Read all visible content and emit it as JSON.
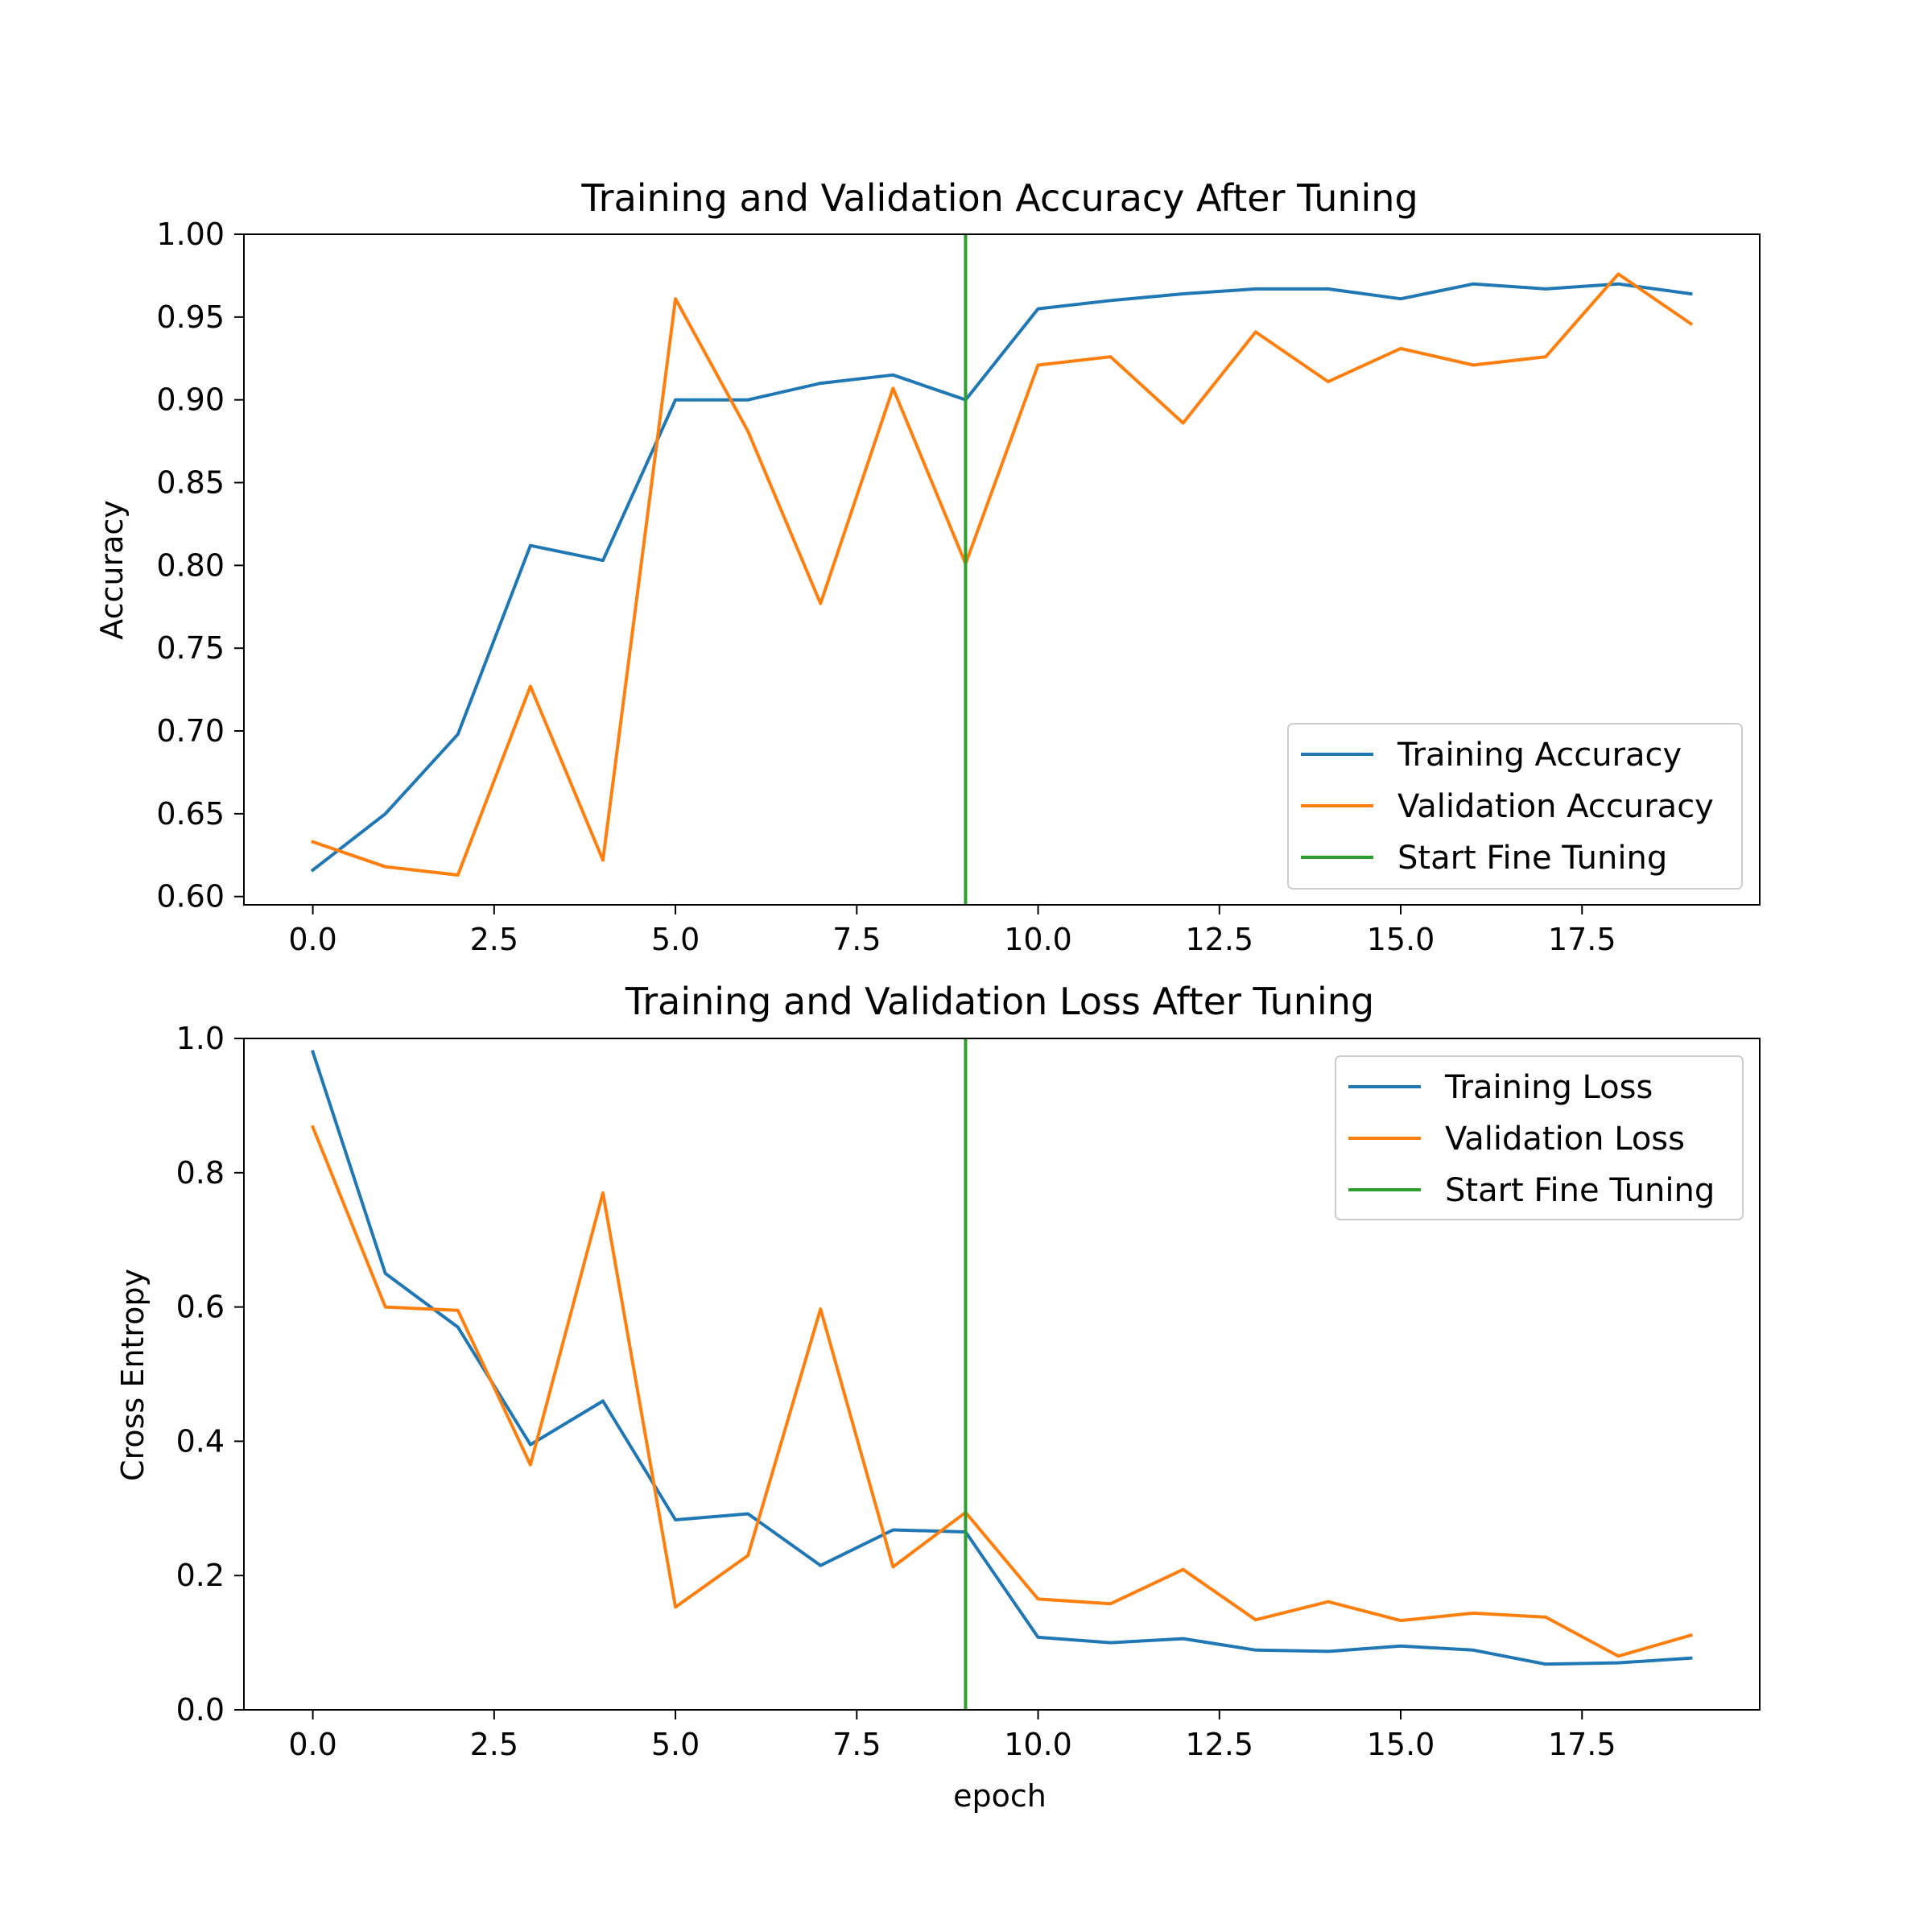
{
  "chart_data": [
    {
      "type": "line",
      "title": "Training and Validation Accuracy After Tuning",
      "xlabel": "",
      "ylabel": "Accuracy",
      "xlim": [
        -0.95,
        19.95
      ],
      "ylim": [
        0.595,
        1.0
      ],
      "xticks": [
        0.0,
        2.5,
        5.0,
        7.5,
        10.0,
        12.5,
        15.0,
        17.5
      ],
      "xtick_labels": [
        "0.0",
        "2.5",
        "5.0",
        "7.5",
        "10.0",
        "12.5",
        "15.0",
        "17.5"
      ],
      "yticks": [
        0.6,
        0.65,
        0.7,
        0.75,
        0.8,
        0.85,
        0.9,
        0.95,
        1.0
      ],
      "ytick_labels": [
        "0.60",
        "0.65",
        "0.70",
        "0.75",
        "0.80",
        "0.85",
        "0.90",
        "0.95",
        "1.00"
      ],
      "x": [
        0,
        1,
        2,
        3,
        4,
        5,
        6,
        7,
        8,
        9,
        10,
        11,
        12,
        13,
        14,
        15,
        16,
        17,
        18,
        19
      ],
      "series": [
        {
          "name": "Training Accuracy",
          "color": "#1f77b4",
          "values": [
            0.616,
            0.65,
            0.698,
            0.812,
            0.803,
            0.9,
            0.9,
            0.91,
            0.915,
            0.9,
            0.955,
            0.96,
            0.964,
            0.967,
            0.967,
            0.961,
            0.97,
            0.967,
            0.97,
            0.964
          ]
        },
        {
          "name": "Validation Accuracy",
          "color": "#ff7f0e",
          "values": [
            0.633,
            0.618,
            0.613,
            0.727,
            0.622,
            0.961,
            0.881,
            0.777,
            0.907,
            0.801,
            0.921,
            0.926,
            0.886,
            0.941,
            0.911,
            0.931,
            0.921,
            0.926,
            0.976,
            0.946
          ]
        }
      ],
      "vline": {
        "name": "Start Fine Tuning",
        "x": 9,
        "color": "#2ca02c"
      },
      "grid": false,
      "legend": "lower right"
    },
    {
      "type": "line",
      "title": "Training and Validation Loss After Tuning",
      "xlabel": "epoch",
      "ylabel": "Cross Entropy",
      "xlim": [
        -0.95,
        19.95
      ],
      "ylim": [
        0.0,
        1.0
      ],
      "xticks": [
        0.0,
        2.5,
        5.0,
        7.5,
        10.0,
        12.5,
        15.0,
        17.5
      ],
      "xtick_labels": [
        "0.0",
        "2.5",
        "5.0",
        "7.5",
        "10.0",
        "12.5",
        "15.0",
        "17.5"
      ],
      "yticks": [
        0.0,
        0.2,
        0.4,
        0.6,
        0.8,
        1.0
      ],
      "ytick_labels": [
        "0.0",
        "0.2",
        "0.4",
        "0.6",
        "0.8",
        "1.0"
      ],
      "x": [
        0,
        1,
        2,
        3,
        4,
        5,
        6,
        7,
        8,
        9,
        10,
        11,
        12,
        13,
        14,
        15,
        16,
        17,
        18,
        19
      ],
      "series": [
        {
          "name": "Training Loss",
          "color": "#1f77b4",
          "values": [
            0.98,
            0.65,
            0.57,
            0.395,
            0.46,
            0.283,
            0.292,
            0.215,
            0.268,
            0.265,
            0.108,
            0.1,
            0.106,
            0.089,
            0.087,
            0.095,
            0.089,
            0.068,
            0.07,
            0.077
          ]
        },
        {
          "name": "Validation Loss",
          "color": "#ff7f0e",
          "values": [
            0.868,
            0.6,
            0.595,
            0.365,
            0.77,
            0.153,
            0.23,
            0.597,
            0.213,
            0.294,
            0.165,
            0.158,
            0.209,
            0.134,
            0.161,
            0.133,
            0.144,
            0.138,
            0.08,
            0.111
          ]
        }
      ],
      "vline": {
        "name": "Start Fine Tuning",
        "x": 9,
        "color": "#2ca02c"
      },
      "grid": false,
      "legend": "upper right"
    }
  ]
}
